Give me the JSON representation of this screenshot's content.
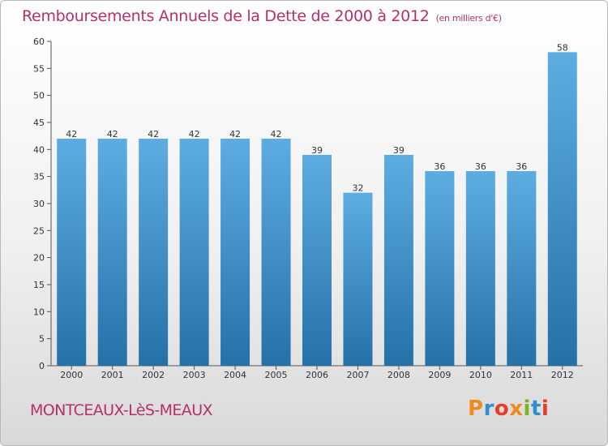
{
  "header": {
    "title": "Remboursements Annuels de la Dette de 2000 à 2012",
    "subtitle": "(en milliers d'€)"
  },
  "footer": {
    "city": "MONTCEAUX-LèS-MEAUX",
    "brand": "Proxiti",
    "brand_colors": [
      "#f08a1c",
      "#2e8ecf",
      "#e83b2a",
      "#f08a1c",
      "#7ab51d",
      "#2e8ecf",
      "#e83b2a"
    ]
  },
  "colors": {
    "bar_light": "#5dade2",
    "bar_dark": "#2471a8",
    "text_accent": "#b5306a"
  },
  "chart_data": {
    "type": "bar",
    "categories": [
      "2000",
      "2001",
      "2002",
      "2003",
      "2004",
      "2005",
      "2006",
      "2007",
      "2008",
      "2009",
      "2010",
      "2011",
      "2012"
    ],
    "values": [
      42,
      42,
      42,
      42,
      42,
      42,
      39,
      32,
      39,
      36,
      36,
      36,
      58
    ],
    "yticks": [
      0,
      5,
      10,
      15,
      20,
      25,
      30,
      35,
      40,
      45,
      50,
      55,
      60
    ],
    "ylim": [
      0,
      60
    ],
    "grid": false
  }
}
